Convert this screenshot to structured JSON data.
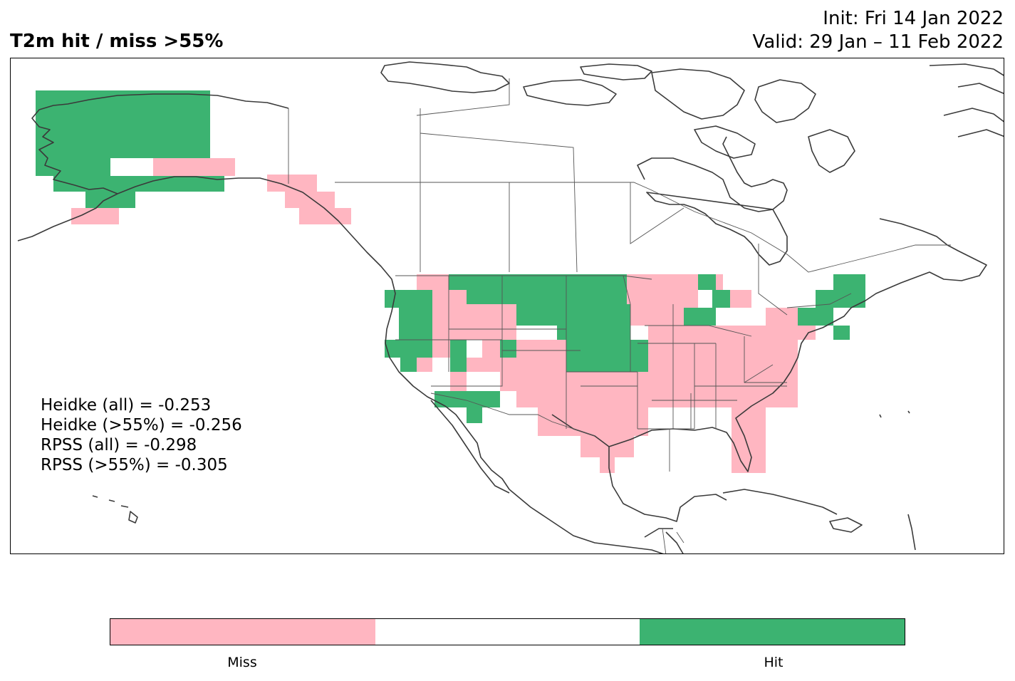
{
  "title": "T2m hit / miss  >55%",
  "init_line": "Init: Fri 14 Jan 2022",
  "valid_line": "Valid: 29 Jan – 11 Feb 2022",
  "stats": [
    "Heidke (all) = -0.253",
    "Heidke (>55%) = -0.256",
    "RPSS (all) = -0.298",
    "RPSS (>55%) = -0.305"
  ],
  "legend": {
    "labels": [
      "Miss",
      "Hit"
    ],
    "colors": {
      "miss": "#FFB6C1",
      "neutral": "#FFFFFF",
      "hit": "#3CB371"
    }
  },
  "colors": {
    "coast": "#3a3a3a",
    "border": "#555555"
  }
}
